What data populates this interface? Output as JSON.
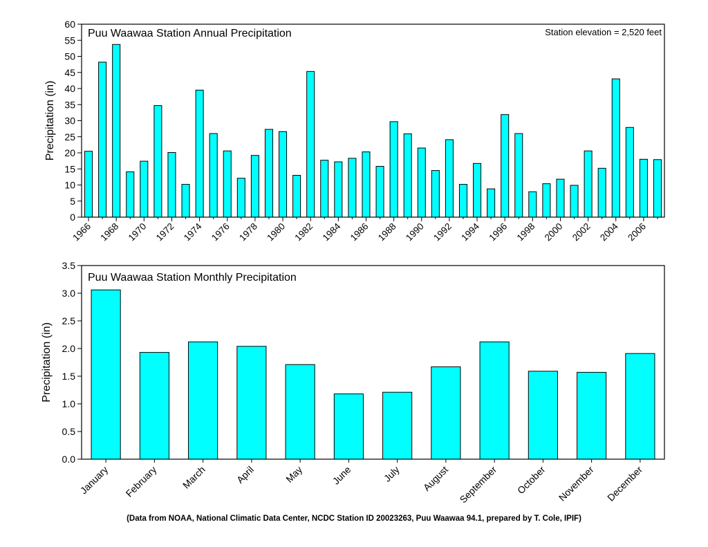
{
  "footer_note": "(Data from NOAA, National Climatic Data Center, NCDC Station ID 20023263, Puu Waawaa 94.1, prepared by T. Cole, IPIF)",
  "colors": {
    "bar_fill": "#00FFFF",
    "bar_stroke": "#000000"
  },
  "chart_data": [
    {
      "type": "bar",
      "title": "Puu Waawaa Station Annual Precipitation",
      "annotation": "Station elevation = 2,520 feet",
      "xlabel": "",
      "ylabel": "Precipitation (in)",
      "ylim": [
        0,
        60
      ],
      "yticks": [
        0,
        5,
        10,
        15,
        20,
        25,
        30,
        35,
        40,
        45,
        50,
        55,
        60
      ],
      "ytick_labels": [
        "0",
        "5",
        "10",
        "15",
        "20",
        "25",
        "30",
        "35",
        "40",
        "45",
        "50",
        "55",
        "60"
      ],
      "categories": [
        "1966",
        "1967",
        "1968",
        "1969",
        "1970",
        "1971",
        "1972",
        "1973",
        "1974",
        "1975",
        "1976",
        "1977",
        "1978",
        "1979",
        "1980",
        "1981",
        "1982",
        "1983",
        "1984",
        "1985",
        "1986",
        "1987",
        "1988",
        "1989",
        "1990",
        "1991",
        "1992",
        "1993",
        "1994",
        "1995",
        "1996",
        "1997",
        "1998",
        "1999",
        "2000",
        "2001",
        "2002",
        "2003",
        "2004",
        "2005",
        "2006",
        "2007"
      ],
      "xtick_labels": [
        "1966",
        "1968",
        "1970",
        "1972",
        "1974",
        "1976",
        "1978",
        "1980",
        "1982",
        "1984",
        "1986",
        "1988",
        "1990",
        "1992",
        "1994",
        "1996",
        "1998",
        "2000",
        "2002",
        "2004",
        "2006"
      ],
      "values": [
        20.5,
        48.2,
        53.7,
        14.1,
        17.4,
        34.7,
        20.1,
        10.2,
        39.5,
        26.0,
        20.6,
        12.1,
        19.2,
        27.3,
        26.6,
        13.0,
        45.3,
        17.7,
        17.2,
        18.3,
        20.3,
        15.8,
        29.7,
        25.9,
        21.5,
        14.5,
        24.1,
        10.2,
        16.7,
        8.8,
        31.9,
        26.0,
        7.9,
        10.4,
        11.8,
        9.9,
        20.6,
        15.2,
        43.0,
        27.9,
        18.0,
        17.9
      ],
      "grid": false,
      "legend": "none"
    },
    {
      "type": "bar",
      "title": "Puu Waawaa Station Monthly Precipitation",
      "xlabel": "",
      "ylabel": "Precipitation (in)",
      "ylim": [
        0,
        3.5
      ],
      "yticks": [
        0,
        0.5,
        1.0,
        1.5,
        2.0,
        2.5,
        3.0,
        3.5
      ],
      "ytick_labels": [
        "0.0",
        "0.5",
        "1.0",
        "1.5",
        "2.0",
        "2.5",
        "3.0",
        "3.5"
      ],
      "categories": [
        "January",
        "February",
        "March",
        "April",
        "May",
        "June",
        "July",
        "August",
        "September",
        "October",
        "November",
        "December"
      ],
      "values": [
        3.06,
        1.93,
        2.12,
        2.04,
        1.71,
        1.18,
        1.21,
        1.67,
        2.12,
        1.59,
        1.57,
        1.91
      ],
      "grid": false,
      "legend": "none"
    }
  ]
}
